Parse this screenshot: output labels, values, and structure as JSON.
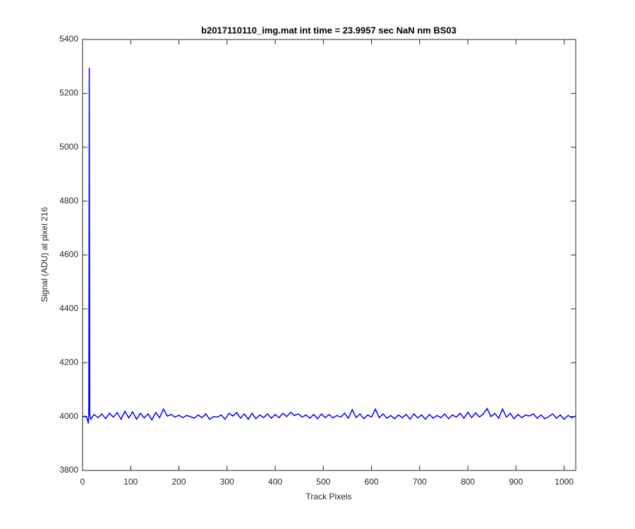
{
  "chart_data": {
    "type": "line",
    "title": "b2017110110_img.mat int time = 23.9957 sec  NaN nm BS03",
    "x_label": "Track Pixels",
    "y_label": "Signal (ADU) at pixel 216",
    "xlim": [
      0,
      1024
    ],
    "xticks": [
      0,
      100,
      200,
      300,
      400,
      500,
      600,
      700,
      800,
      900,
      1000
    ],
    "ylim": [
      3800,
      5400
    ],
    "yticks": [
      3800,
      4000,
      4200,
      4400,
      4600,
      4800,
      5000,
      5200,
      5400
    ],
    "grid": false,
    "x": [
      1,
      5,
      9,
      12,
      13,
      14,
      15,
      17,
      24,
      32,
      40,
      48,
      56,
      64,
      72,
      80,
      88,
      96,
      104,
      112,
      120,
      128,
      136,
      144,
      152,
      160,
      168,
      176,
      184,
      192,
      200,
      208,
      216,
      224,
      232,
      240,
      248,
      256,
      264,
      272,
      280,
      288,
      296,
      304,
      312,
      320,
      328,
      336,
      344,
      352,
      360,
      368,
      376,
      384,
      392,
      400,
      408,
      416,
      424,
      432,
      440,
      448,
      456,
      464,
      472,
      480,
      488,
      496,
      504,
      512,
      520,
      528,
      536,
      544,
      552,
      560,
      568,
      576,
      584,
      592,
      600,
      608,
      616,
      624,
      632,
      640,
      648,
      656,
      664,
      672,
      680,
      688,
      696,
      704,
      712,
      720,
      728,
      736,
      744,
      752,
      760,
      768,
      776,
      784,
      792,
      800,
      808,
      816,
      824,
      832,
      840,
      848,
      856,
      864,
      872,
      880,
      888,
      896,
      904,
      912,
      920,
      928,
      936,
      944,
      952,
      960,
      968,
      976,
      984,
      992,
      1000,
      1008,
      1016,
      1024
    ],
    "series": [
      {
        "name": "signal",
        "color": "#0000ff",
        "values": [
          3998,
          4002,
          3995,
          3975,
          4005,
          5295,
          4010,
          3990,
          4008,
          3996,
          4010,
          3992,
          4012,
          3998,
          4015,
          3990,
          4020,
          3995,
          4018,
          3990,
          4012,
          3995,
          4010,
          3988,
          4015,
          3996,
          4028,
          4002,
          4008,
          3998,
          4005,
          3996,
          4004,
          4000,
          3994,
          4006,
          3996,
          4010,
          3990,
          4000,
          3998,
          4006,
          3990,
          4012,
          4002,
          4015,
          3994,
          4010,
          3990,
          4012,
          3992,
          4006,
          3996,
          4010,
          3994,
          4008,
          3996,
          4012,
          4000,
          4016,
          4004,
          4010,
          3998,
          4006,
          3994,
          4008,
          3992,
          4010,
          3996,
          4008,
          3995,
          4004,
          3998,
          4012,
          3994,
          4026,
          3996,
          4010,
          3992,
          4006,
          3998,
          4028,
          3996,
          4010,
          3994,
          4004,
          3992,
          4006,
          3996,
          4008,
          3990,
          4010,
          3995,
          4006,
          3990,
          4008,
          3994,
          4004,
          3996,
          4010,
          3992,
          4006,
          3998,
          4012,
          3994,
          4016,
          3996,
          4014,
          3998,
          4010,
          4030,
          4000,
          4012,
          3994,
          4028,
          3998,
          4012,
          3992,
          4008,
          3996,
          4006,
          4002,
          4010,
          3994,
          4006,
          3992,
          4000,
          4010,
          3994,
          4006,
          3990,
          4004,
          3996,
          4002
        ]
      }
    ]
  }
}
